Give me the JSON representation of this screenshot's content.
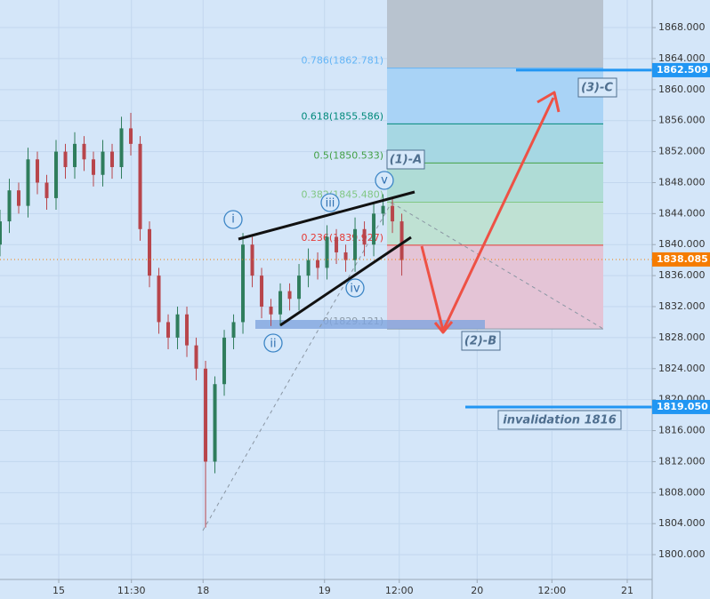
{
  "chart_data": {
    "type": "candlestick",
    "x": [
      0,
      1.5,
      3,
      4.5,
      6,
      7.5,
      9,
      10.5,
      12,
      13.5,
      15,
      16.5,
      18,
      19.5,
      21,
      22.5,
      24,
      25.5,
      27,
      28.5,
      30,
      31.5,
      33,
      34.5,
      36,
      37.5,
      39,
      40.5,
      42,
      43.5,
      45,
      46.5,
      48,
      49.5,
      51,
      52.5,
      54,
      55.5,
      57,
      58.5,
      60,
      61.5,
      63,
      64.5
    ],
    "open": [
      1840,
      1843,
      1847,
      1845,
      1851,
      1848,
      1846,
      1852,
      1850,
      1853,
      1851,
      1849,
      1852,
      1850,
      1855,
      1853,
      1842,
      1836,
      1830,
      1828,
      1831,
      1827,
      1824,
      1812,
      1822,
      1828,
      1830,
      1840,
      1836,
      1832,
      1831,
      1834,
      1833,
      1836,
      1838,
      1837,
      1841,
      1839,
      1838,
      1842,
      1840,
      1844,
      1845,
      1843
    ],
    "high": [
      1844.5,
      1848.5,
      1848,
      1852.5,
      1852,
      1849,
      1853.5,
      1853,
      1854.5,
      1854,
      1852,
      1853.5,
      1853,
      1856.5,
      1857,
      1854,
      1843,
      1837,
      1831,
      1832,
      1832,
      1828,
      1825,
      1823,
      1829,
      1831,
      1841.5,
      1841,
      1837,
      1833,
      1835,
      1835,
      1837.5,
      1839.5,
      1839,
      1842.5,
      1842,
      1840,
      1843.5,
      1843,
      1845.5,
      1846.5,
      1846,
      1844
    ],
    "low": [
      1838.5,
      1841.5,
      1844,
      1843.5,
      1846.5,
      1844.5,
      1844.5,
      1848.5,
      1848.5,
      1849.5,
      1847.5,
      1847.5,
      1848.5,
      1848.5,
      1851.5,
      1840.5,
      1834.5,
      1828.5,
      1826.5,
      1826.5,
      1825.5,
      1822.5,
      1803.5,
      1810.5,
      1820.5,
      1826.5,
      1828.5,
      1834.5,
      1830.5,
      1829.5,
      1829.5,
      1831.5,
      1831.5,
      1834.5,
      1835.5,
      1835.5,
      1837.5,
      1836.5,
      1836.5,
      1838.5,
      1838.5,
      1842.5,
      1841.5,
      1836
    ],
    "close": [
      1843,
      1847,
      1845,
      1851,
      1848,
      1846,
      1852,
      1850,
      1853,
      1851,
      1849,
      1852,
      1850,
      1855,
      1853,
      1842,
      1836,
      1830,
      1828,
      1831,
      1827,
      1824,
      1812,
      1822,
      1828,
      1830,
      1840,
      1836,
      1832,
      1831,
      1834,
      1833,
      1836,
      1838,
      1837,
      1841,
      1839,
      1838,
      1842,
      1840,
      1844,
      1845,
      1843,
      1838
    ],
    "up_color": "#2f7d5c",
    "down_color": "#b8454b",
    "xlim": [
      0,
      104.7
    ],
    "xticks": [
      {
        "value": 9.43,
        "label": "15"
      },
      {
        "value": 21.1,
        "label": "11:30"
      },
      {
        "value": 32.6,
        "label": "18"
      },
      {
        "value": 52.1,
        "label": "19"
      },
      {
        "value": 64.1,
        "label": "12:00"
      },
      {
        "value": 76.6,
        "label": "20"
      },
      {
        "value": 88.6,
        "label": "12:00"
      },
      {
        "value": 100.7,
        "label": "21"
      }
    ],
    "ylim": [
      1796.8,
      1871.56
    ],
    "yticks": [
      {
        "value": 1800,
        "label": "1800.000"
      },
      {
        "value": 1804,
        "label": "1804.000"
      },
      {
        "value": 1808,
        "label": "1808.000"
      },
      {
        "value": 1812,
        "label": "1812.000"
      },
      {
        "value": 1816,
        "label": "1816.000"
      },
      {
        "value": 1820,
        "label": "1820.000"
      },
      {
        "value": 1824,
        "label": "1824.000"
      },
      {
        "value": 1828,
        "label": "1828.000"
      },
      {
        "value": 1832,
        "label": "1832.000"
      },
      {
        "value": 1836,
        "label": "1836.000"
      },
      {
        "value": 1840,
        "label": "1840.000"
      },
      {
        "value": 1844,
        "label": "1844.000"
      },
      {
        "value": 1848,
        "label": "1848.000"
      },
      {
        "value": 1852,
        "label": "1852.000"
      },
      {
        "value": 1856,
        "label": "1856.000"
      },
      {
        "value": 1860,
        "label": "1860.000"
      },
      {
        "value": 1864,
        "label": "1864.000"
      },
      {
        "value": 1868,
        "label": "1868.000"
      }
    ],
    "grid": true,
    "price_labels": [
      {
        "value": 1862.509,
        "label": "1862.509",
        "color": "#2196f3"
      },
      {
        "value": 1838.085,
        "label": "1838.085",
        "color": "#f57c00"
      },
      {
        "value": 1819.05,
        "label": "1819.050",
        "color": "#2196f3"
      }
    ],
    "fib_levels": [
      {
        "price": 1862.781,
        "label": "0.786(1862.781)",
        "color": "#64b5f6",
        "fill": "#a9d3f6"
      },
      {
        "price": 1855.586,
        "label": "0.618(1855.586)",
        "color": "#00897b",
        "fill": "#a6d7e3"
      },
      {
        "price": 1850.533,
        "label": "0.5(1850.533)",
        "color": "#43a047",
        "fill": "#afdcd6"
      },
      {
        "price": 1845.48,
        "label": "0.382(1845.480)",
        "color": "#81c784",
        "fill": "#bfe1d3"
      },
      {
        "price": 1839.927,
        "label": "0.236(1839.927)",
        "color": "#e53935",
        "fill": "#e4c4d6"
      },
      {
        "price": 1829.121,
        "label": "0(1829.121)",
        "color": "#8c9aa8",
        "fill": null
      }
    ],
    "labels": {
      "wave_a": "(1)-A",
      "wave_b": "(2)-B",
      "wave_c": "(3)-C",
      "invalidation": "invalidation 1816",
      "i": "i",
      "ii": "ii",
      "iii": "iii",
      "iv": "iv",
      "v": "v"
    }
  }
}
